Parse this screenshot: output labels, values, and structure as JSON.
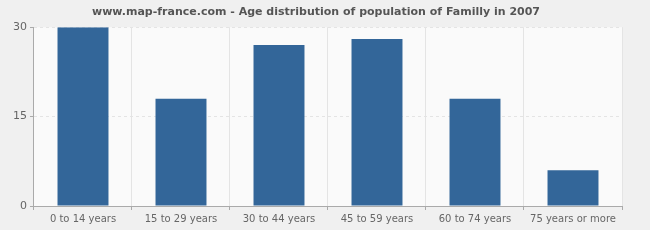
{
  "chart_data": {
    "type": "bar",
    "title": "www.map-france.com - Age distribution of population of Familly in 2007",
    "categories": [
      "0 to 14 years",
      "15 to 29 years",
      "30 to 44 years",
      "45 to 59 years",
      "60 to 74 years",
      "75 years or more"
    ],
    "values": [
      30,
      18,
      27,
      28,
      18,
      6
    ],
    "color": "#336699",
    "ylim": [
      0,
      30
    ],
    "yticks": [
      0,
      15,
      30
    ],
    "grid": true
  }
}
